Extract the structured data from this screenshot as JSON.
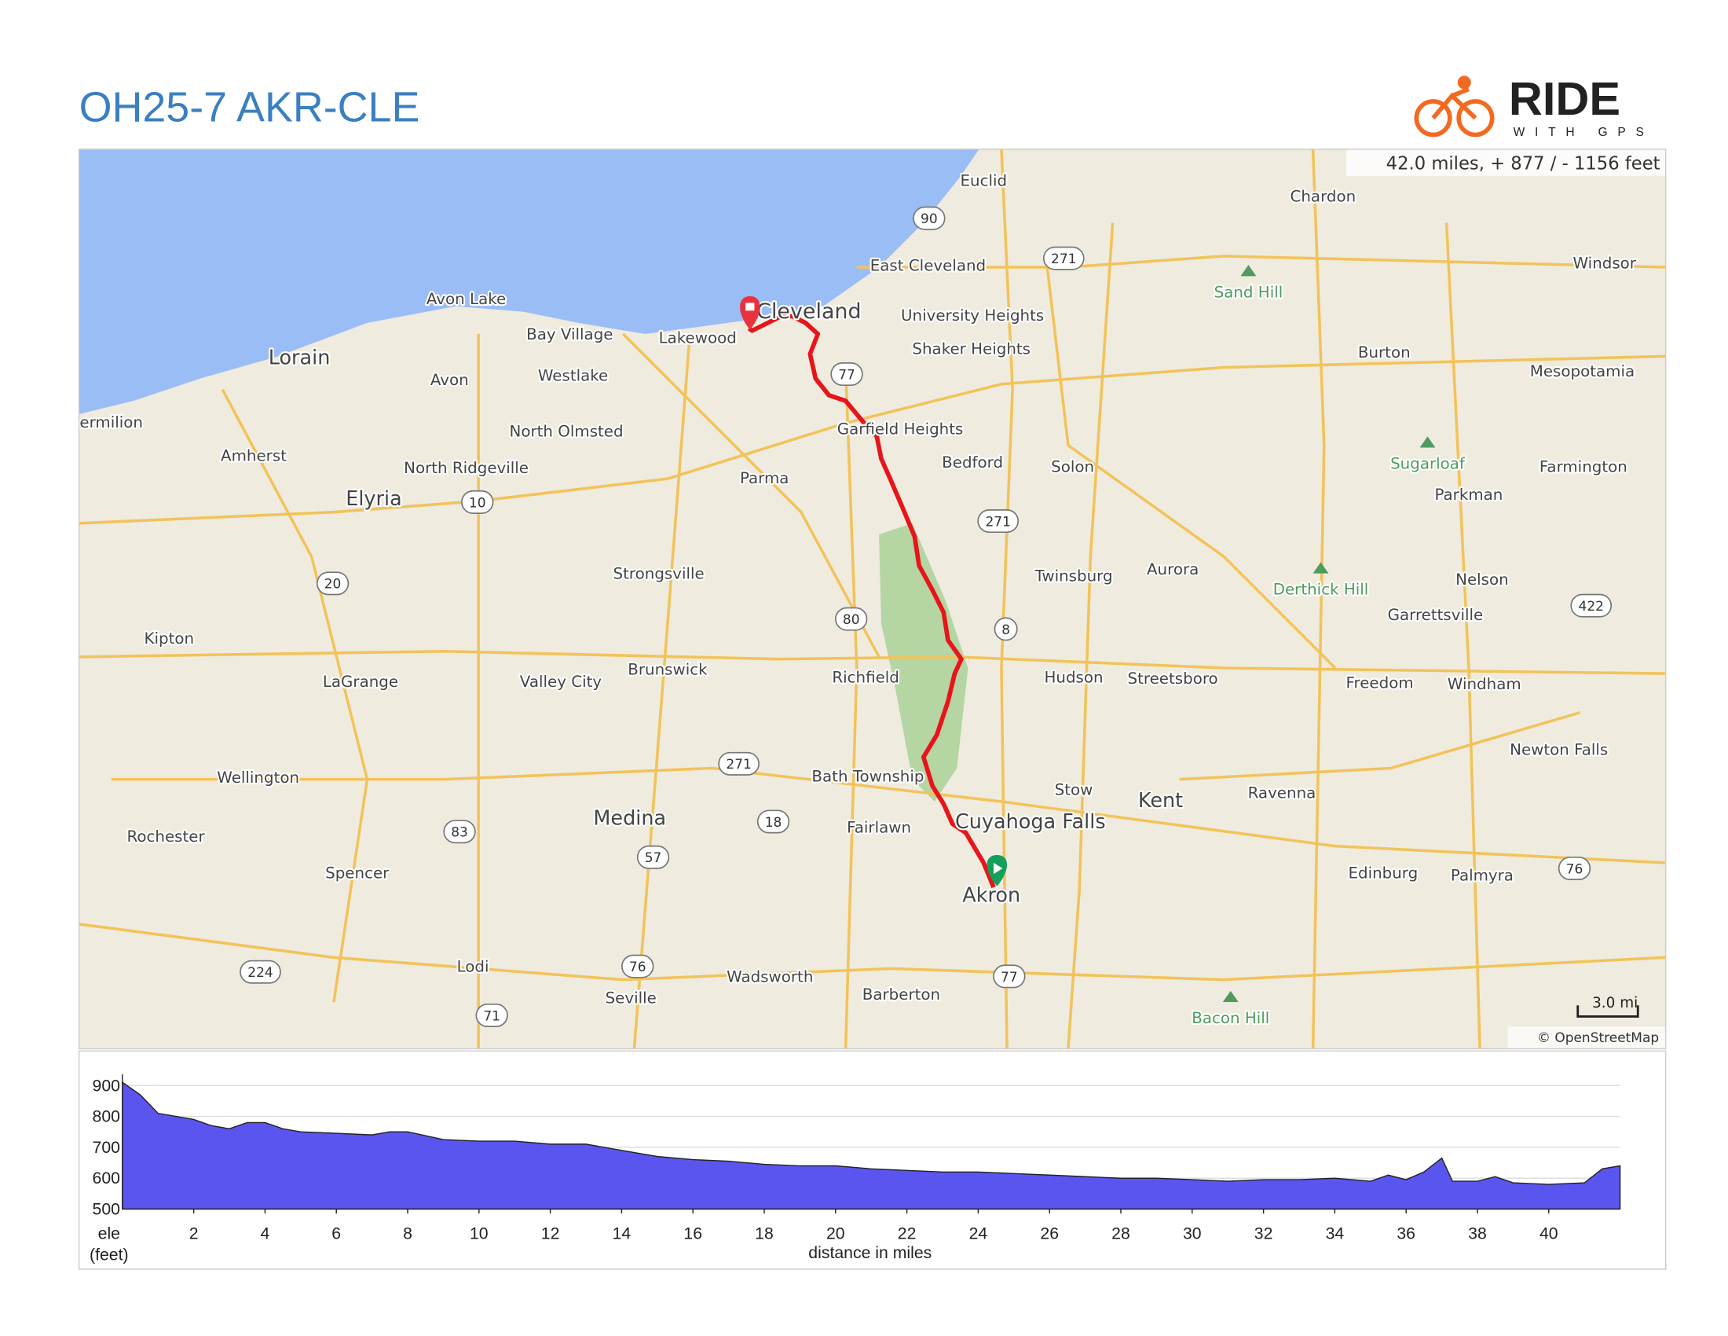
{
  "header": {
    "title": "OH25-7 AKR-CLE",
    "logo": {
      "name": "RIDE",
      "tagline": "WITH GPS"
    }
  },
  "map": {
    "summary": "42.0 miles, + 877 / - 1156 feet",
    "scale": "3.0 mi",
    "attribution": "© OpenStreetMap",
    "places": [
      "Euclid",
      "Chardon",
      "East Cleveland",
      "Windsor",
      "Avon Lake",
      "Cleveland",
      "University Heights",
      "Bay Village",
      "Lakewood",
      "Lorain",
      "Shaker Heights",
      "Burton",
      "Avon",
      "Westlake",
      "Mesopotamia",
      "ermilion",
      "North Olmsted",
      "Garfield Heights",
      "Amherst",
      "North Ridgeville",
      "Bedford",
      "Solon",
      "Farmington",
      "Parma",
      "Parkman",
      "Elyria",
      "Twinsburg",
      "Aurora",
      "Nelson",
      "Strongsville",
      "Garrettsville",
      "Kipton",
      "LaGrange",
      "Valley City",
      "Brunswick",
      "Richfield",
      "Hudson",
      "Streetsboro",
      "Freedom",
      "Windham",
      "Newton Falls",
      "Wellington",
      "Bath Township",
      "Stow",
      "Kent",
      "Ravenna",
      "Medina",
      "Rochester",
      "Fairlawn",
      "Cuyahoga Falls",
      "Spencer",
      "Edinburg",
      "Palmyra",
      "Akron",
      "Lodi",
      "Wadsworth",
      "Seville",
      "Barberton"
    ],
    "hills": [
      "Sand Hill",
      "Sugarloaf",
      "Derthick Hill",
      "Bacon Hill"
    ],
    "shields": [
      "90",
      "271",
      "77",
      "10",
      "271",
      "20",
      "80",
      "8",
      "422",
      "271",
      "83",
      "18",
      "57",
      "76",
      "76",
      "224",
      "77",
      "71"
    ]
  },
  "chart_data": {
    "type": "area",
    "color": "#5b55f0",
    "xlabel": "distance in miles",
    "ylabel": "ele",
    "yunit": "(feet)",
    "x": [
      0,
      0.5,
      1,
      1.5,
      2,
      2.5,
      3,
      3.5,
      4,
      4.5,
      5,
      6,
      7,
      7.5,
      8,
      9,
      10,
      11,
      12,
      13,
      14,
      15,
      16,
      17,
      18,
      19,
      20,
      21,
      22,
      23,
      24,
      25,
      26,
      27,
      28,
      29,
      30,
      31,
      32,
      33,
      34,
      35,
      35.5,
      36,
      36.5,
      37,
      37.3,
      38,
      38.5,
      39,
      40,
      41,
      41.5,
      42
    ],
    "values": [
      910,
      870,
      810,
      800,
      790,
      770,
      760,
      780,
      780,
      760,
      750,
      745,
      740,
      750,
      750,
      725,
      720,
      720,
      710,
      710,
      690,
      670,
      660,
      655,
      645,
      640,
      640,
      630,
      625,
      620,
      620,
      615,
      610,
      605,
      600,
      600,
      595,
      590,
      595,
      595,
      600,
      590,
      610,
      595,
      620,
      665,
      590,
      590,
      605,
      585,
      580,
      585,
      630,
      640
    ],
    "xlim": [
      0,
      42
    ],
    "ylim": [
      500,
      900
    ],
    "xticks": [
      2,
      4,
      6,
      8,
      10,
      12,
      14,
      16,
      18,
      20,
      22,
      24,
      26,
      28,
      30,
      32,
      34,
      36,
      38,
      40
    ],
    "yticks": [
      500,
      600,
      700,
      800,
      900
    ]
  }
}
